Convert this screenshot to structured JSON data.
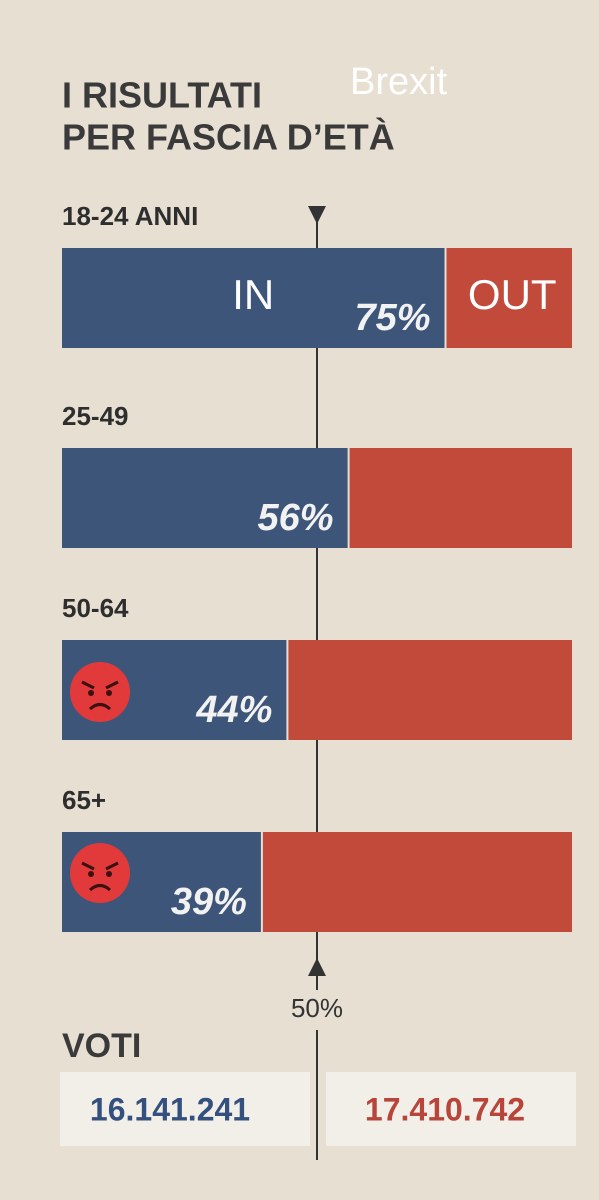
{
  "chart_data": {
    "type": "stacked-hbar",
    "title": [
      "I RISULTATI",
      "PER FASCIA D’ETÀ"
    ],
    "annotation": "Brexit",
    "categories": [
      "18-24 ANNI",
      "25-49",
      "50-64",
      "65+"
    ],
    "series": [
      {
        "name": "IN",
        "color": "#3d5579",
        "values": [
          75,
          56,
          44,
          39
        ],
        "value_labels": [
          "75%",
          "56%",
          "44%",
          "39%"
        ]
      },
      {
        "name": "OUT",
        "color": "#c24a3b",
        "values": [
          25,
          44,
          56,
          61
        ]
      }
    ],
    "xlim": [
      0,
      100
    ],
    "reference": {
      "value": 50,
      "label": "50%"
    },
    "votes": {
      "label": "VOTI",
      "in": "16.141.241",
      "out": "17.410.742"
    }
  }
}
